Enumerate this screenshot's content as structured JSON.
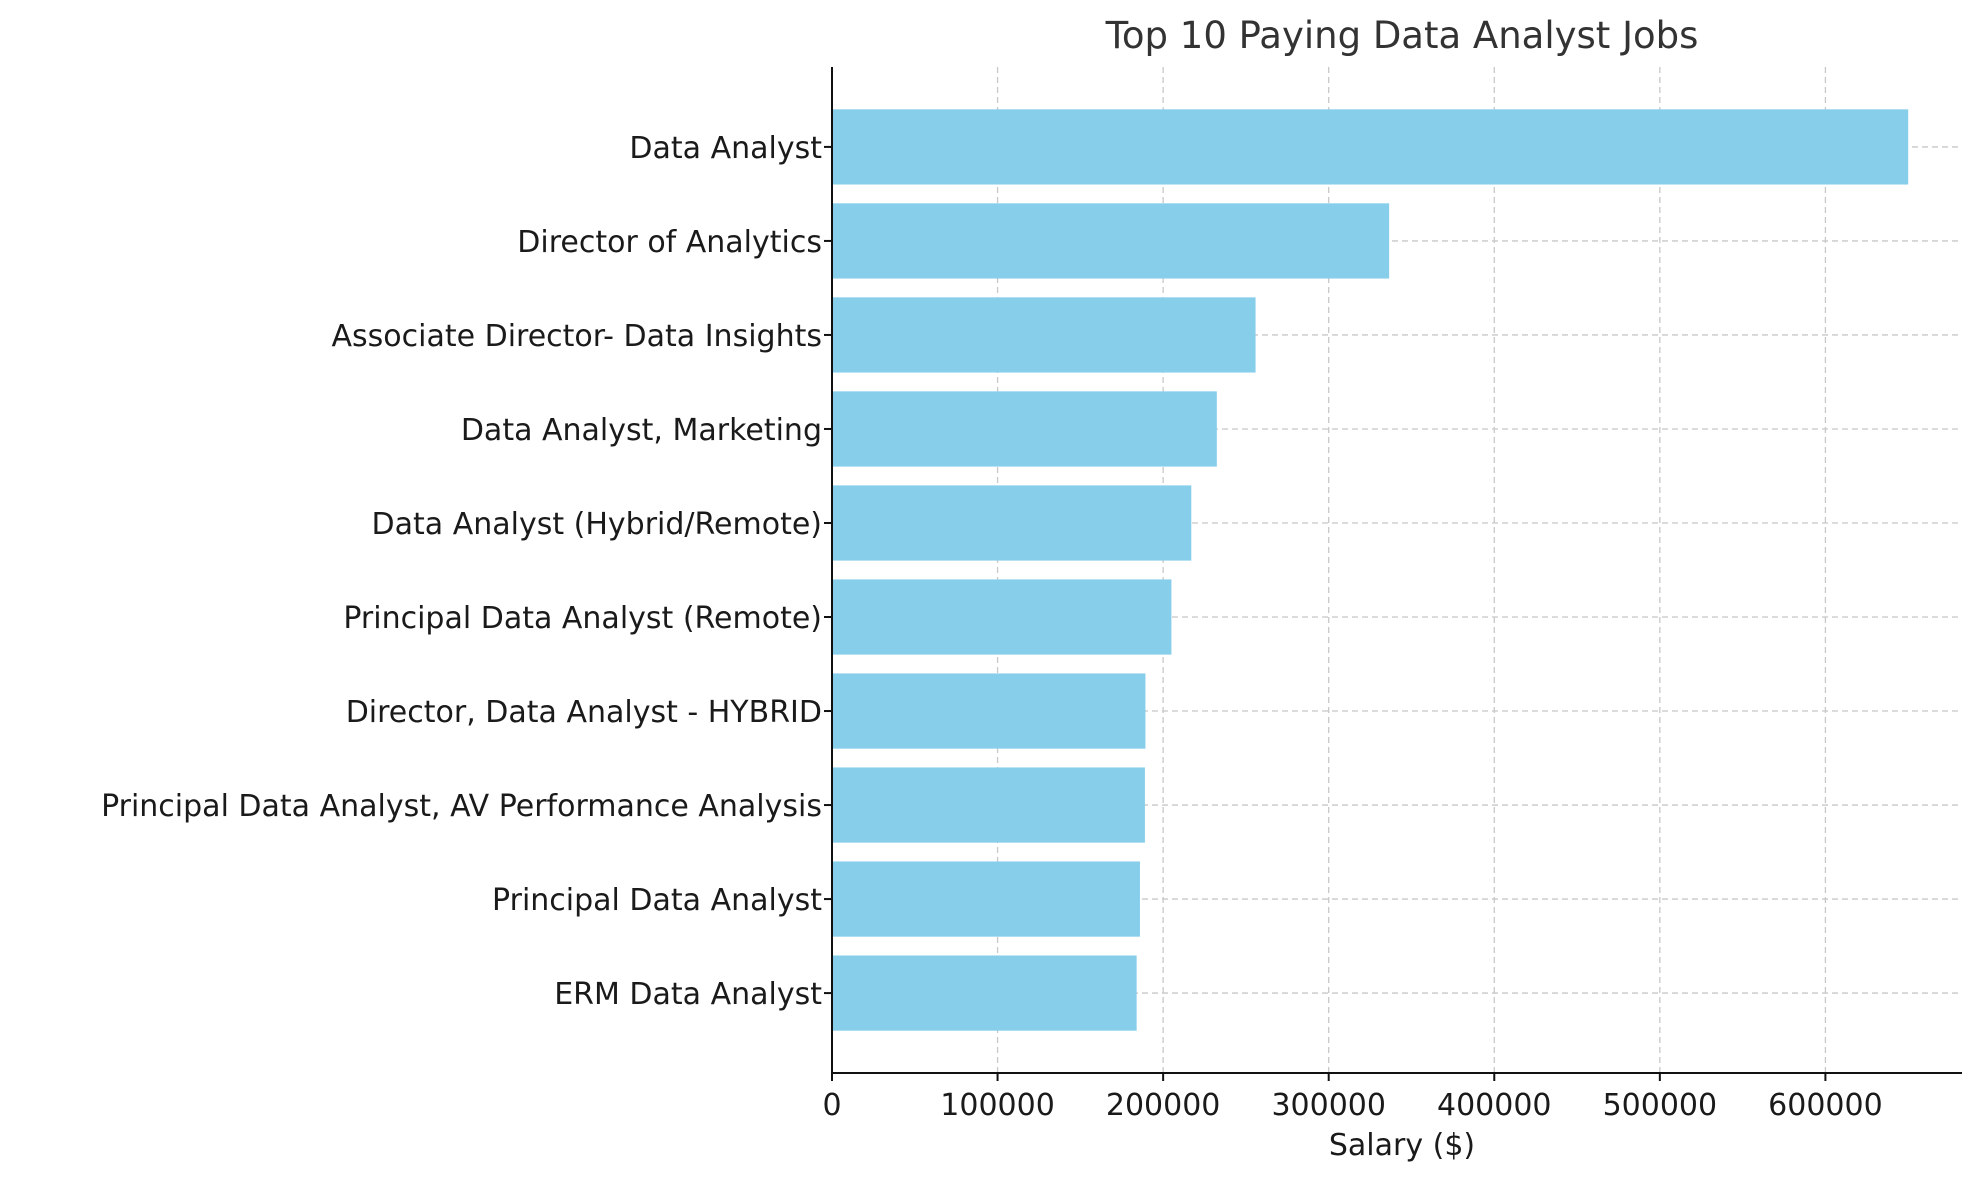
{
  "chart_data": {
    "type": "bar",
    "orientation": "horizontal",
    "title": "Top 10 Paying Data Analyst Jobs",
    "xlabel": "Salary ($)",
    "ylabel": "",
    "categories": [
      "Data Analyst",
      "Director of Analytics",
      "Associate Director- Data Insights",
      "Data Analyst, Marketing",
      "Data Analyst (Hybrid/Remote)",
      "Principal Data Analyst (Remote)",
      "Director, Data Analyst - HYBRID",
      "Principal Data Analyst, AV Performance Analysis",
      "Principal Data Analyst",
      "ERM Data Analyst"
    ],
    "values": [
      650000,
      336500,
      255830,
      232423,
      217000,
      205000,
      189309,
      189000,
      186000,
      184000
    ],
    "xlim": [
      0,
      682500
    ],
    "xticks": [
      "0",
      "100000",
      "200000",
      "300000",
      "400000",
      "500000",
      "600000"
    ],
    "xtick_values": [
      0,
      100000,
      200000,
      300000,
      400000,
      500000,
      600000
    ],
    "grid": true,
    "colors": {
      "bar": "#87CEEB",
      "grid": "#c8c8c8",
      "axis": "#111111"
    }
  }
}
